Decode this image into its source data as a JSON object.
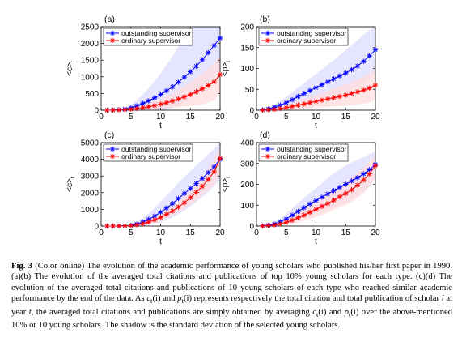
{
  "colors": {
    "outstanding": "#0000ff",
    "ordinary": "#ff0000",
    "outstanding_shadow": "#dcdcff",
    "ordinary_shadow": "#ffdcdc"
  },
  "chart_data": [
    {
      "type": "line",
      "panel": "(a)",
      "xlabel": "t",
      "ylabel": "<c>",
      "xlim": [
        0,
        20
      ],
      "ylim": [
        0,
        2500
      ],
      "xticks": [
        "0",
        "5",
        "10",
        "15",
        "20"
      ],
      "yticks": [
        "0",
        "500",
        "1000",
        "1500",
        "2000",
        "2500"
      ],
      "legend_position": "top-left",
      "x": [
        1,
        2,
        3,
        4,
        5,
        6,
        7,
        8,
        9,
        10,
        11,
        12,
        13,
        14,
        15,
        16,
        17,
        18,
        19,
        20
      ],
      "series": [
        {
          "name": "outstanding supervisor",
          "marker": "*",
          "values": [
            0,
            5,
            15,
            35,
            70,
            130,
            200,
            280,
            370,
            470,
            580,
            700,
            840,
            990,
            1150,
            1320,
            1510,
            1720,
            1940,
            2160
          ],
          "upper": [
            0,
            10,
            30,
            80,
            160,
            300,
            470,
            660,
            870,
            1100,
            1350,
            1620,
            1900,
            2200,
            2450,
            2600,
            2700,
            2800,
            2900,
            3000
          ],
          "lower": [
            0,
            0,
            0,
            0,
            0,
            0,
            0,
            0,
            0,
            0,
            10,
            60,
            150,
            260,
            380,
            520,
            680,
            860,
            1050,
            1250
          ]
        },
        {
          "name": "ordinary supervisor",
          "marker": "*",
          "values": [
            0,
            2,
            6,
            14,
            28,
            50,
            75,
            105,
            140,
            180,
            225,
            275,
            335,
            400,
            470,
            550,
            640,
            740,
            850,
            1070
          ],
          "upper": [
            0,
            5,
            12,
            28,
            55,
            95,
            145,
            200,
            260,
            330,
            410,
            500,
            600,
            710,
            830,
            960,
            1100,
            1250,
            1420,
            1600
          ],
          "lower": [
            0,
            0,
            0,
            0,
            0,
            5,
            10,
            20,
            30,
            40,
            55,
            70,
            90,
            110,
            130,
            150,
            180,
            230,
            290,
            550
          ]
        }
      ]
    },
    {
      "type": "line",
      "panel": "(b)",
      "xlabel": "t",
      "ylabel": "<p>",
      "xlim": [
        0,
        20
      ],
      "ylim": [
        0,
        200
      ],
      "xticks": [
        "0",
        "5",
        "10",
        "15",
        "20"
      ],
      "yticks": [
        "0",
        "50",
        "100",
        "150",
        "200"
      ],
      "legend_position": "top-left",
      "x": [
        1,
        2,
        3,
        4,
        5,
        6,
        7,
        8,
        9,
        10,
        11,
        12,
        13,
        14,
        15,
        16,
        17,
        18,
        19,
        20
      ],
      "series": [
        {
          "name": "outstanding supervisor",
          "marker": "*",
          "values": [
            1,
            3,
            7,
            12,
            18,
            25,
            33,
            40,
            47,
            54,
            61,
            68,
            75,
            82,
            89,
            97,
            106,
            117,
            130,
            145
          ],
          "upper": [
            2,
            6,
            13,
            22,
            32,
            43,
            54,
            65,
            76,
            87,
            98,
            109,
            120,
            132,
            144,
            156,
            168,
            180,
            192,
            200
          ],
          "lower": [
            0,
            0,
            1,
            2,
            4,
            7,
            12,
            16,
            20,
            25,
            29,
            33,
            37,
            42,
            47,
            52,
            58,
            65,
            74,
            90
          ]
        },
        {
          "name": "ordinary supervisor",
          "marker": "*",
          "values": [
            0,
            1,
            2,
            4,
            6,
            9,
            12,
            15,
            18,
            21,
            24,
            27,
            30,
            33,
            36,
            40,
            44,
            48,
            53,
            60
          ],
          "upper": [
            1,
            2,
            5,
            8,
            12,
            17,
            22,
            27,
            32,
            37,
            42,
            47,
            52,
            57,
            62,
            68,
            74,
            80,
            88,
            97
          ],
          "lower": [
            0,
            0,
            0,
            0,
            1,
            2,
            3,
            4,
            5,
            6,
            7,
            8,
            9,
            10,
            11,
            12,
            14,
            16,
            18,
            25
          ]
        }
      ]
    },
    {
      "type": "line",
      "panel": "(c)",
      "xlabel": "t",
      "ylabel": "<c>",
      "xlim": [
        0,
        20
      ],
      "ylim": [
        0,
        5000
      ],
      "xticks": [
        "0",
        "5",
        "10",
        "15",
        "20"
      ],
      "yticks": [
        "0",
        "1000",
        "2000",
        "3000",
        "4000",
        "5000"
      ],
      "legend_position": "top-left",
      "x": [
        1,
        2,
        3,
        4,
        5,
        6,
        7,
        8,
        9,
        10,
        11,
        12,
        13,
        14,
        15,
        16,
        17,
        18,
        19,
        20
      ],
      "series": [
        {
          "name": "outstanding supervisor",
          "marker": "*",
          "values": [
            0,
            2,
            8,
            20,
            50,
            120,
            240,
            400,
            600,
            830,
            1080,
            1350,
            1650,
            1950,
            2250,
            2550,
            2850,
            3200,
            3550,
            4000
          ],
          "upper": [
            0,
            5,
            15,
            40,
            100,
            240,
            470,
            760,
            1100,
            1450,
            1820,
            2200,
            2600,
            2950,
            3300,
            3650,
            3950,
            4300,
            4650,
            5000
          ],
          "lower": [
            0,
            0,
            0,
            0,
            0,
            10,
            30,
            60,
            120,
            220,
            360,
            530,
            720,
            940,
            1180,
            1450,
            1750,
            2050,
            2400,
            2800
          ]
        },
        {
          "name": "ordinary supervisor",
          "marker": "*",
          "values": [
            0,
            1,
            4,
            12,
            30,
            70,
            140,
            240,
            370,
            520,
            700,
            900,
            1140,
            1400,
            1700,
            2020,
            2380,
            2780,
            3250,
            4050
          ],
          "upper": [
            0,
            3,
            10,
            25,
            60,
            130,
            240,
            380,
            550,
            740,
            950,
            1180,
            1450,
            1750,
            2100,
            2500,
            2950,
            3450,
            4050,
            4700
          ],
          "lower": [
            0,
            0,
            0,
            0,
            0,
            10,
            40,
            100,
            190,
            300,
            450,
            620,
            830,
            1050,
            1300,
            1550,
            1850,
            2150,
            2500,
            3000
          ]
        }
      ]
    },
    {
      "type": "line",
      "panel": "(d)",
      "xlabel": "t",
      "ylabel": "<p>",
      "xlim": [
        0,
        20
      ],
      "ylim": [
        0,
        400
      ],
      "xticks": [
        "0",
        "5",
        "10",
        "15",
        "20"
      ],
      "yticks": [
        "0",
        "100",
        "200",
        "300",
        "400"
      ],
      "legend_position": "top-left",
      "x": [
        1,
        2,
        3,
        4,
        5,
        6,
        7,
        8,
        9,
        10,
        11,
        12,
        13,
        14,
        15,
        16,
        17,
        18,
        19,
        20
      ],
      "series": [
        {
          "name": "outstanding supervisor",
          "marker": "*",
          "values": [
            1,
            4,
            10,
            20,
            34,
            52,
            70,
            88,
            106,
            122,
            138,
            154,
            170,
            186,
            200,
            216,
            232,
            250,
            270,
            295
          ],
          "upper": [
            2,
            8,
            18,
            35,
            58,
            85,
            110,
            134,
            158,
            182,
            206,
            230,
            252,
            272,
            290,
            305,
            318,
            330,
            345,
            360
          ],
          "lower": [
            0,
            0,
            2,
            5,
            10,
            18,
            30,
            42,
            54,
            62,
            70,
            78,
            88,
            100,
            110,
            127,
            146,
            170,
            195,
            230
          ]
        },
        {
          "name": "ordinary supervisor",
          "marker": "*",
          "values": [
            0,
            2,
            5,
            10,
            18,
            28,
            40,
            52,
            66,
            80,
            94,
            108,
            124,
            140,
            156,
            174,
            196,
            220,
            250,
            290
          ],
          "upper": [
            1,
            4,
            10,
            18,
            30,
            45,
            62,
            80,
            98,
            116,
            134,
            152,
            170,
            190,
            210,
            232,
            256,
            282,
            310,
            340
          ],
          "lower": [
            0,
            0,
            1,
            3,
            6,
            11,
            18,
            25,
            34,
            44,
            54,
            64,
            78,
            90,
            102,
            116,
            136,
            158,
            190,
            240
          ]
        }
      ]
    }
  ],
  "caption": {
    "label": "Fig. 3",
    "part1": " (Color online) The evolution of the academic performance of young scholars who published his/her first paper in 1990. (a)(b) The evolution of the averaged total citations and publications of top 10% young scholars for each type. (c)(d) The evolution of the averaged total citations and publications of 10 young scholars of each type who reached similar academic performance by the end of the data. As ",
    "ct": "c",
    "ct_sub": "t",
    "ct_arg": "(i)",
    "and1": " and ",
    "pt": "p",
    "pt_sub": "t",
    "pt_arg": "(i)",
    "part2": " represents respectively the total citation and total publication of scholar ",
    "i": "i",
    "part3": " at year ",
    "t": "t",
    "part4": ", the averaged total citations and publications are simply obtained by averaging ",
    "ct2": "c",
    "ct2_sub": "t",
    "ct2_arg": "(i)",
    "and2": " and ",
    "pt2": "p",
    "pt2_sub": "t",
    "pt2_arg": "(i)",
    "part5": " over the above-mentioned 10% or 10 young scholars. The shadow is the standard deviation of the selected young scholars."
  }
}
